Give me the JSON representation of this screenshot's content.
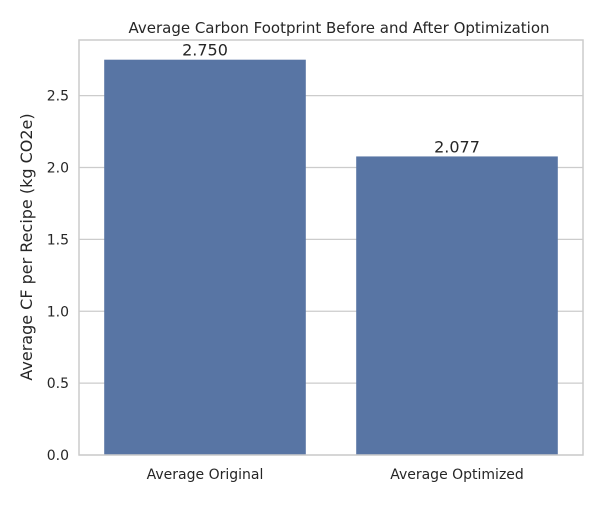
{
  "chart_data": {
    "type": "bar",
    "title": "Average Carbon Footprint Before and After Optimization",
    "xlabel": "",
    "ylabel": "Average CF per Recipe (kg CO2e)",
    "categories": [
      "Average Original",
      "Average Optimized"
    ],
    "values": [
      2.75,
      2.077
    ],
    "value_labels": [
      "2.750",
      "2.077"
    ],
    "ylim": [
      0,
      2.887
    ],
    "yticks": [
      0,
      0.5,
      1.0,
      1.5,
      2.0,
      2.5
    ],
    "ytick_labels": [
      "0.0",
      "0.5",
      "1.0",
      "1.5",
      "2.0",
      "2.5"
    ],
    "bar_color": "#5875a4",
    "grid": "horizontal",
    "legend": "none"
  }
}
